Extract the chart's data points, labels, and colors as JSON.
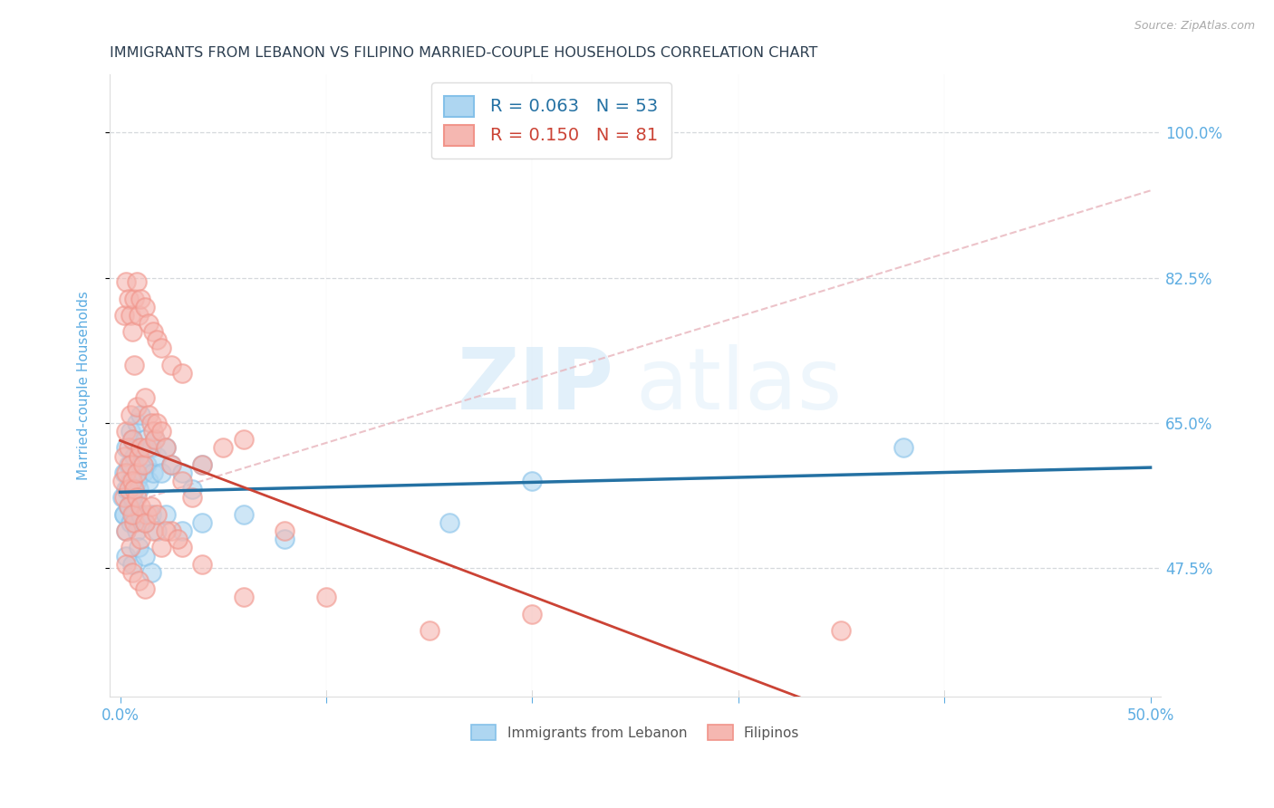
{
  "title": "IMMIGRANTS FROM LEBANON VS FILIPINO MARRIED-COUPLE HOUSEHOLDS CORRELATION CHART",
  "source": "Source: ZipAtlas.com",
  "xlabel_ticks_show": [
    "0.0%",
    "50.0%"
  ],
  "xlabel_ticks_show_vals": [
    0.0,
    0.5
  ],
  "xlabel_minor_vals": [
    0.1,
    0.2,
    0.3,
    0.4
  ],
  "ylabel_ticks": [
    "100.0%",
    "82.5%",
    "65.0%",
    "47.5%"
  ],
  "ylabel_vals": [
    1.0,
    0.825,
    0.65,
    0.475
  ],
  "ylabel_label": "Married-couple Households",
  "xlim": [
    -0.005,
    0.505
  ],
  "ylim": [
    0.32,
    1.07
  ],
  "watermark_zip": "ZIP",
  "watermark_atlas": "atlas",
  "blue_color": "#85c1e9",
  "pink_color": "#f1948a",
  "blue_fill": "#aed6f1",
  "pink_fill": "#f5b7b1",
  "blue_line_color": "#2471a3",
  "pink_line_color": "#cb4335",
  "pink_dashed_color": "#e8b4bc",
  "R_blue": 0.063,
  "N_blue": 53,
  "R_pink": 0.15,
  "N_pink": 81,
  "grid_color": "#d5d8dc",
  "background_color": "#ffffff",
  "title_color": "#2c3e50",
  "tick_color": "#5dade2",
  "blue_scatter_x": [
    0.001,
    0.002,
    0.002,
    0.003,
    0.003,
    0.004,
    0.004,
    0.005,
    0.005,
    0.006,
    0.006,
    0.007,
    0.007,
    0.008,
    0.008,
    0.009,
    0.009,
    0.01,
    0.01,
    0.011,
    0.012,
    0.013,
    0.014,
    0.015,
    0.016,
    0.017,
    0.018,
    0.02,
    0.022,
    0.025,
    0.03,
    0.035,
    0.04,
    0.002,
    0.003,
    0.004,
    0.005,
    0.006,
    0.007,
    0.008,
    0.01,
    0.012,
    0.015,
    0.018,
    0.022,
    0.03,
    0.04,
    0.06,
    0.08,
    0.16,
    0.2,
    0.38,
    0.003,
    0.006,
    0.009,
    0.012,
    0.015
  ],
  "blue_scatter_y": [
    0.56,
    0.54,
    0.59,
    0.57,
    0.62,
    0.55,
    0.6,
    0.58,
    0.64,
    0.56,
    0.63,
    0.55,
    0.61,
    0.58,
    0.65,
    0.57,
    0.62,
    0.6,
    0.66,
    0.59,
    0.63,
    0.6,
    0.58,
    0.62,
    0.59,
    0.63,
    0.61,
    0.59,
    0.62,
    0.6,
    0.59,
    0.57,
    0.6,
    0.54,
    0.52,
    0.55,
    0.53,
    0.56,
    0.54,
    0.52,
    0.54,
    0.53,
    0.54,
    0.52,
    0.54,
    0.52,
    0.53,
    0.54,
    0.51,
    0.53,
    0.58,
    0.62,
    0.49,
    0.48,
    0.5,
    0.49,
    0.47
  ],
  "pink_scatter_x": [
    0.001,
    0.002,
    0.002,
    0.003,
    0.003,
    0.004,
    0.004,
    0.005,
    0.005,
    0.006,
    0.006,
    0.007,
    0.007,
    0.008,
    0.008,
    0.009,
    0.01,
    0.011,
    0.012,
    0.013,
    0.014,
    0.015,
    0.016,
    0.017,
    0.018,
    0.02,
    0.022,
    0.025,
    0.03,
    0.035,
    0.04,
    0.05,
    0.06,
    0.002,
    0.003,
    0.004,
    0.005,
    0.006,
    0.007,
    0.008,
    0.009,
    0.01,
    0.012,
    0.014,
    0.016,
    0.018,
    0.02,
    0.025,
    0.03,
    0.003,
    0.005,
    0.007,
    0.01,
    0.013,
    0.016,
    0.02,
    0.025,
    0.03,
    0.04,
    0.06,
    0.08,
    0.1,
    0.15,
    0.2,
    0.35,
    0.004,
    0.006,
    0.008,
    0.01,
    0.012,
    0.015,
    0.018,
    0.022,
    0.028,
    0.003,
    0.006,
    0.009,
    0.012
  ],
  "pink_scatter_y": [
    0.58,
    0.56,
    0.61,
    0.59,
    0.64,
    0.57,
    0.62,
    0.6,
    0.66,
    0.58,
    0.63,
    0.57,
    0.72,
    0.59,
    0.67,
    0.61,
    0.62,
    0.6,
    0.68,
    0.62,
    0.66,
    0.65,
    0.64,
    0.63,
    0.65,
    0.64,
    0.62,
    0.6,
    0.58,
    0.56,
    0.6,
    0.62,
    0.63,
    0.78,
    0.82,
    0.8,
    0.78,
    0.76,
    0.8,
    0.82,
    0.78,
    0.8,
    0.79,
    0.77,
    0.76,
    0.75,
    0.74,
    0.72,
    0.71,
    0.52,
    0.5,
    0.53,
    0.51,
    0.54,
    0.52,
    0.5,
    0.52,
    0.5,
    0.48,
    0.44,
    0.52,
    0.44,
    0.4,
    0.42,
    0.4,
    0.55,
    0.54,
    0.56,
    0.55,
    0.53,
    0.55,
    0.54,
    0.52,
    0.51,
    0.48,
    0.47,
    0.46,
    0.45
  ],
  "legend_labels_bottom": [
    "Immigrants from Lebanon",
    "Filipinos"
  ]
}
